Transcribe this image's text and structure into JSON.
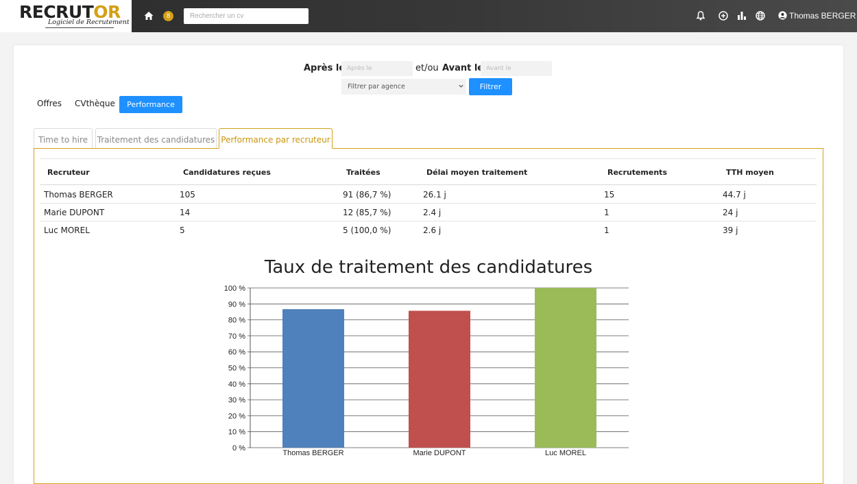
{
  "app": {
    "logo_text_main": "RECRUT",
    "logo_text_accent": "OR",
    "logo_subtitle": "Logiciel de Recrutement",
    "notification_count": "8",
    "search_placeholder": "Rechercher un cv",
    "user_name": "Thomas BERGER"
  },
  "filters": {
    "after_label": "Après le",
    "after_placeholder": "Après le",
    "separator": "et/ou",
    "before_label": "Avant le",
    "before_placeholder": "Avant le",
    "agency_placeholder": "Filtrer par agence",
    "filter_button": "Filtrer"
  },
  "nav_tabs": [
    "Offres",
    "CVthèque",
    "Performance"
  ],
  "sub_tabs": [
    "Time to hire",
    "Traitement des candidatures",
    "Performance par recruteur"
  ],
  "table": {
    "headers": [
      "Recruteur",
      "Candidatures reçues",
      "Traitées",
      "Délai moyen traitement",
      "Recrutements",
      "TTH moyen"
    ],
    "rows": [
      [
        "Thomas BERGER",
        "105",
        "91 (86,7 %)",
        "26.1 j",
        "15",
        "44.7 j"
      ],
      [
        "Marie DUPONT",
        "14",
        "12 (85,7 %)",
        "2.4 j",
        "1",
        "24 j"
      ],
      [
        "Luc MOREL",
        "5",
        "5 (100,0 %)",
        "2.6 j",
        "1",
        "39 j"
      ]
    ]
  },
  "chart_data": {
    "type": "bar",
    "title": "Taux de traitement des candidatures",
    "categories": [
      "Thomas BERGER",
      "Marie DUPONT",
      "Luc MOREL"
    ],
    "values": [
      86.7,
      85.7,
      100
    ],
    "colors": [
      "#4f81bd",
      "#c0504d",
      "#9bbb59"
    ],
    "ylim": [
      0,
      100
    ],
    "y_ticks": [
      "0 %",
      "10 %",
      "20 %",
      "30 %",
      "40 %",
      "50 %",
      "60 %",
      "70 %",
      "80 %",
      "90 %",
      "100 %"
    ],
    "xlabel": "",
    "ylabel": "",
    "grid": true
  },
  "colors": {
    "accent": "#d4a017",
    "primary_button": "#1e90ff"
  }
}
